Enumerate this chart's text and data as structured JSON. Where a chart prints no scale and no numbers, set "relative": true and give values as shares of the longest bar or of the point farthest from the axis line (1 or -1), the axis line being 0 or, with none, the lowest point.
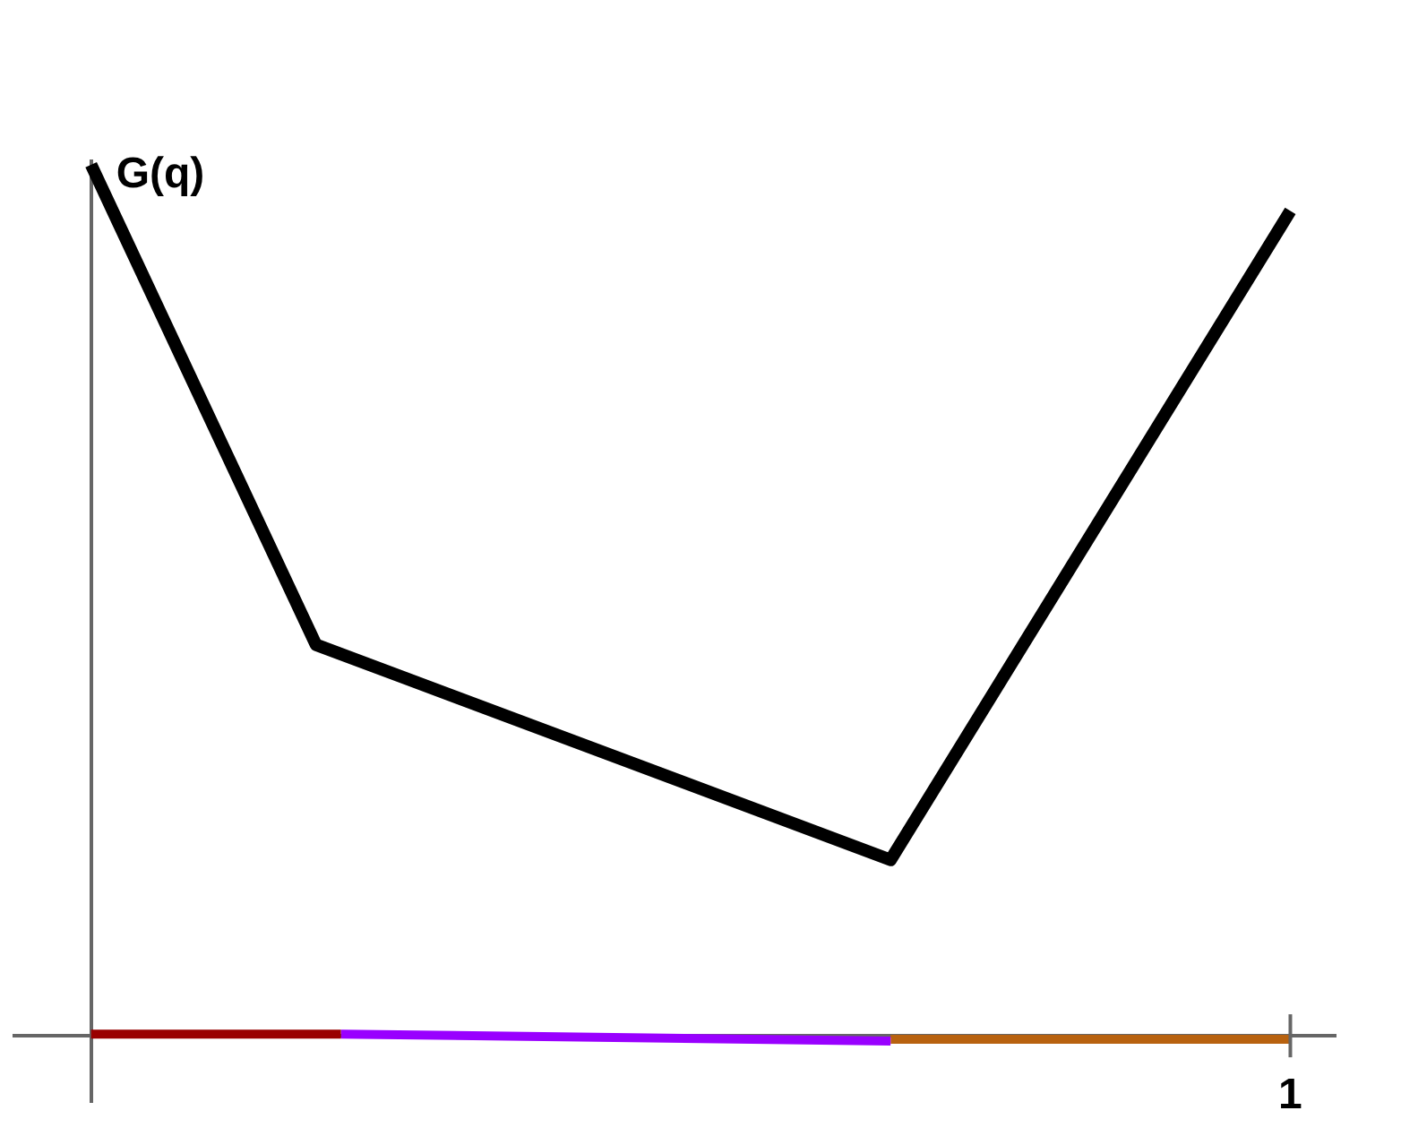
{
  "chart_data": {
    "type": "line",
    "ylabel": "G(q)",
    "relative": true,
    "annotations": [
      "1"
    ],
    "grid": false,
    "legend": false,
    "marker": "none",
    "line_style": "solid",
    "categories": [
      null,
      null,
      null,
      null,
      null,
      null,
      null,
      null,
      null,
      null,
      null,
      null,
      null,
      null,
      null,
      null,
      null,
      null,
      null,
      null,
      null,
      null,
      null,
      null,
      null,
      null,
      null,
      null,
      null,
      null,
      null,
      null,
      null,
      null,
      null,
      null,
      null,
      null,
      null,
      null,
      null,
      null,
      null,
      null,
      null,
      null,
      null,
      null,
      null
    ],
    "series": [
      {
        "color": "#000000",
        "values": [
          1,
          null,
          null,
          null,
          null,
          null,
          null,
          null,
          null,
          0.449,
          null,
          null,
          null,
          null,
          null,
          null,
          null,
          null,
          null,
          null,
          null,
          null,
          null,
          null,
          null,
          null,
          null,
          null,
          null,
          null,
          null,
          null,
          0.202,
          null,
          null,
          null,
          null,
          null,
          null,
          null,
          null,
          null,
          null,
          null,
          null,
          null,
          null,
          null,
          0.947
        ]
      },
      {
        "color": "#990000",
        "values": [
          0.002,
          null,
          null,
          null,
          null,
          null,
          null,
          null,
          null,
          null,
          0.002,
          null,
          null,
          null,
          null,
          null,
          null,
          null,
          null,
          null,
          null,
          null,
          null,
          null,
          null,
          null,
          null,
          null,
          null,
          null,
          null,
          null,
          null,
          null,
          null,
          null,
          null,
          null,
          null,
          null,
          null,
          null,
          null,
          null,
          null,
          null,
          null,
          null,
          null
        ]
      },
      {
        "color": "#9900ff",
        "values": [
          null,
          null,
          null,
          null,
          null,
          null,
          null,
          null,
          null,
          null,
          0.002,
          null,
          null,
          null,
          null,
          null,
          null,
          null,
          null,
          null,
          null,
          null,
          null,
          null,
          null,
          null,
          null,
          null,
          null,
          null,
          null,
          null,
          -0.006,
          null,
          null,
          null,
          null,
          null,
          null,
          null,
          null,
          null,
          null,
          null,
          null,
          null,
          null,
          null,
          null
        ]
      },
      {
        "color": "#b8620f",
        "values": [
          null,
          null,
          null,
          null,
          null,
          null,
          null,
          null,
          null,
          null,
          null,
          null,
          null,
          null,
          null,
          null,
          null,
          null,
          null,
          null,
          null,
          null,
          null,
          null,
          null,
          null,
          null,
          null,
          null,
          null,
          null,
          null,
          -0.004,
          null,
          null,
          null,
          null,
          null,
          null,
          null,
          null,
          null,
          null,
          null,
          null,
          null,
          null,
          null,
          -0.004
        ]
      }
    ]
  }
}
